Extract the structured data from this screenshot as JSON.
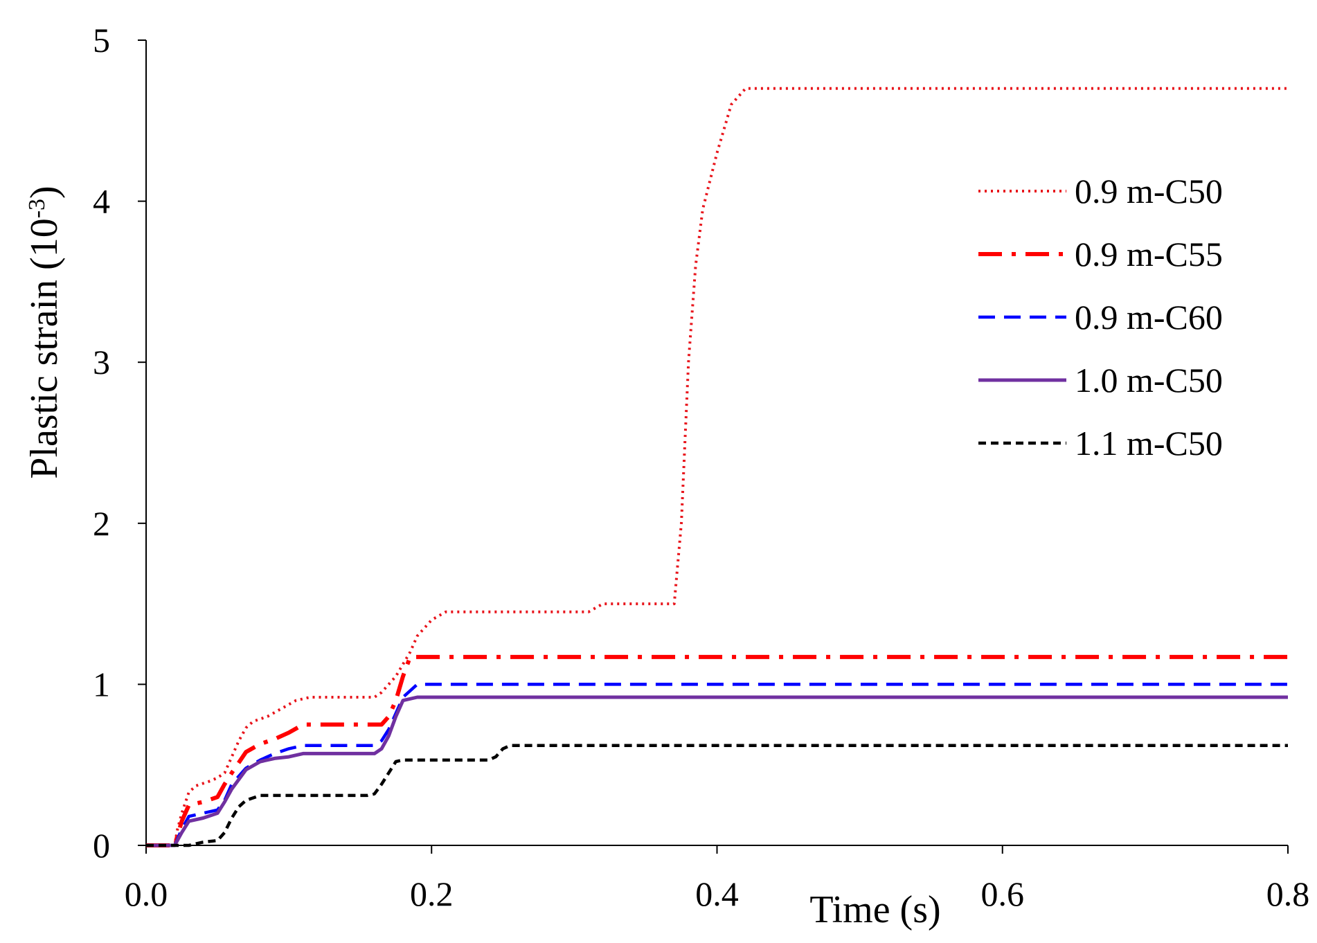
{
  "chart_data": {
    "type": "line",
    "title": "",
    "xlabel": "Time (s)",
    "ylabel": "Plastic strain (10",
    "ylabel_exponent": "-3",
    "ylabel_close": ")",
    "xlim": [
      0,
      0.8
    ],
    "ylim": [
      0,
      5
    ],
    "xticks": [
      0.0,
      0.2,
      0.4,
      0.6,
      0.8
    ],
    "xtick_labels": [
      "0.0",
      "0.2",
      "0.4",
      "0.6",
      "0.8"
    ],
    "yticks": [
      0,
      1,
      2,
      3,
      4,
      5
    ],
    "ytick_labels": [
      "0",
      "1",
      "2",
      "3",
      "4",
      "5"
    ],
    "grid": false,
    "legend_position": "right",
    "series": [
      {
        "name": "0.9 m-C50",
        "color": "#e8141b",
        "style": "dotted",
        "points": [
          [
            0,
            0
          ],
          [
            0.02,
            0
          ],
          [
            0.022,
            0.1
          ],
          [
            0.025,
            0.2
          ],
          [
            0.03,
            0.33
          ],
          [
            0.035,
            0.37
          ],
          [
            0.045,
            0.4
          ],
          [
            0.05,
            0.42
          ],
          [
            0.055,
            0.45
          ],
          [
            0.06,
            0.55
          ],
          [
            0.065,
            0.65
          ],
          [
            0.07,
            0.73
          ],
          [
            0.075,
            0.77
          ],
          [
            0.085,
            0.8
          ],
          [
            0.095,
            0.85
          ],
          [
            0.105,
            0.9
          ],
          [
            0.115,
            0.92
          ],
          [
            0.15,
            0.92
          ],
          [
            0.16,
            0.92
          ],
          [
            0.165,
            0.95
          ],
          [
            0.175,
            1.05
          ],
          [
            0.185,
            1.2
          ],
          [
            0.19,
            1.3
          ],
          [
            0.2,
            1.4
          ],
          [
            0.21,
            1.45
          ],
          [
            0.31,
            1.45
          ],
          [
            0.32,
            1.5
          ],
          [
            0.37,
            1.5
          ],
          [
            0.375,
            2.0
          ],
          [
            0.38,
            3.0
          ],
          [
            0.385,
            3.6
          ],
          [
            0.39,
            3.95
          ],
          [
            0.4,
            4.3
          ],
          [
            0.41,
            4.6
          ],
          [
            0.42,
            4.7
          ],
          [
            0.8,
            4.7
          ]
        ]
      },
      {
        "name": "0.9 m-C55",
        "color": "#ff0000",
        "style": "dashdot",
        "points": [
          [
            0,
            0
          ],
          [
            0.02,
            0
          ],
          [
            0.025,
            0.15
          ],
          [
            0.03,
            0.25
          ],
          [
            0.04,
            0.27
          ],
          [
            0.05,
            0.3
          ],
          [
            0.055,
            0.38
          ],
          [
            0.06,
            0.45
          ],
          [
            0.07,
            0.58
          ],
          [
            0.08,
            0.63
          ],
          [
            0.09,
            0.66
          ],
          [
            0.1,
            0.7
          ],
          [
            0.11,
            0.75
          ],
          [
            0.16,
            0.75
          ],
          [
            0.165,
            0.75
          ],
          [
            0.17,
            0.8
          ],
          [
            0.175,
            0.9
          ],
          [
            0.18,
            1.05
          ],
          [
            0.185,
            1.17
          ],
          [
            0.8,
            1.17
          ]
        ]
      },
      {
        "name": "0.9 m-C60",
        "color": "#0000ff",
        "style": "dashed",
        "points": [
          [
            0,
            0
          ],
          [
            0.02,
            0
          ],
          [
            0.025,
            0.1
          ],
          [
            0.03,
            0.18
          ],
          [
            0.04,
            0.2
          ],
          [
            0.05,
            0.22
          ],
          [
            0.055,
            0.28
          ],
          [
            0.06,
            0.38
          ],
          [
            0.07,
            0.48
          ],
          [
            0.08,
            0.53
          ],
          [
            0.09,
            0.57
          ],
          [
            0.1,
            0.6
          ],
          [
            0.11,
            0.62
          ],
          [
            0.16,
            0.62
          ],
          [
            0.165,
            0.65
          ],
          [
            0.17,
            0.72
          ],
          [
            0.175,
            0.82
          ],
          [
            0.18,
            0.92
          ],
          [
            0.19,
            1.0
          ],
          [
            0.8,
            1.0
          ]
        ]
      },
      {
        "name": "1.0 m-C50",
        "color": "#7030a0",
        "style": "solid",
        "points": [
          [
            0,
            0
          ],
          [
            0.02,
            0
          ],
          [
            0.025,
            0.08
          ],
          [
            0.03,
            0.15
          ],
          [
            0.04,
            0.17
          ],
          [
            0.05,
            0.2
          ],
          [
            0.055,
            0.27
          ],
          [
            0.06,
            0.35
          ],
          [
            0.07,
            0.47
          ],
          [
            0.08,
            0.52
          ],
          [
            0.09,
            0.54
          ],
          [
            0.1,
            0.55
          ],
          [
            0.11,
            0.57
          ],
          [
            0.16,
            0.57
          ],
          [
            0.165,
            0.6
          ],
          [
            0.17,
            0.68
          ],
          [
            0.175,
            0.8
          ],
          [
            0.18,
            0.9
          ],
          [
            0.19,
            0.92
          ],
          [
            0.8,
            0.92
          ]
        ]
      },
      {
        "name": "1.1 m-C50",
        "color": "#000000",
        "style": "shortdash",
        "points": [
          [
            0,
            0
          ],
          [
            0.03,
            0
          ],
          [
            0.04,
            0.02
          ],
          [
            0.05,
            0.03
          ],
          [
            0.055,
            0.08
          ],
          [
            0.06,
            0.17
          ],
          [
            0.065,
            0.24
          ],
          [
            0.07,
            0.28
          ],
          [
            0.08,
            0.31
          ],
          [
            0.155,
            0.31
          ],
          [
            0.16,
            0.32
          ],
          [
            0.165,
            0.38
          ],
          [
            0.17,
            0.45
          ],
          [
            0.175,
            0.52
          ],
          [
            0.18,
            0.53
          ],
          [
            0.24,
            0.53
          ],
          [
            0.245,
            0.55
          ],
          [
            0.25,
            0.6
          ],
          [
            0.255,
            0.62
          ],
          [
            0.8,
            0.62
          ]
        ]
      }
    ]
  }
}
